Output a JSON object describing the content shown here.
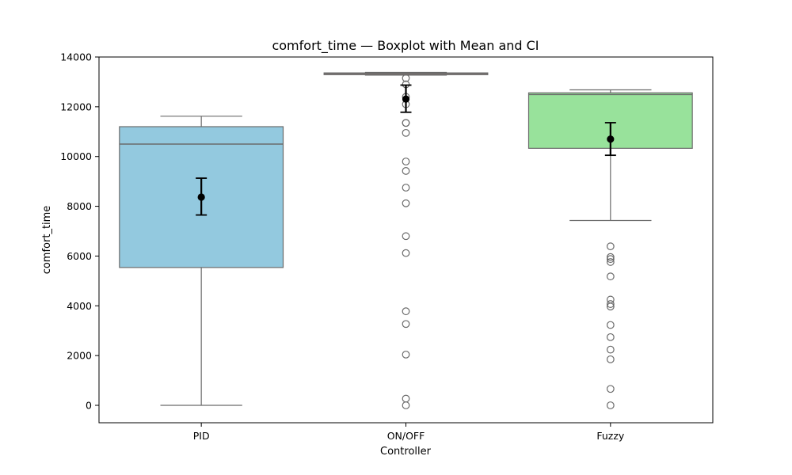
{
  "chart_data": {
    "type": "box",
    "title": "comfort_time — Boxplot with Mean and CI",
    "xlabel": "Controller",
    "ylabel": "comfort_time",
    "ylim": [
      -700,
      14000
    ],
    "yticks": [
      0,
      2000,
      4000,
      6000,
      8000,
      10000,
      12000,
      14000
    ],
    "grid": false,
    "categories": [
      "PID",
      "ON/OFF",
      "Fuzzy"
    ],
    "boxes": [
      {
        "category": "PID",
        "color": "#93c9df",
        "q1": 5540,
        "median": 10500,
        "q3": 11200,
        "whisker_low": 0,
        "whisker_high": 11620,
        "outliers": [],
        "mean": 8370,
        "ci_low": 7650,
        "ci_high": 9130
      },
      {
        "category": "ON/OFF",
        "color": "#f4a582",
        "q1": 13290,
        "median": 13330,
        "q3": 13360,
        "whisker_low": 13270,
        "whisker_high": 13380,
        "outliers": [
          13150,
          12900,
          12400,
          12100,
          11350,
          11350,
          10950,
          9800,
          9420,
          8750,
          8120,
          6800,
          6120,
          3780,
          3270,
          2040,
          270,
          0
        ],
        "mean": 12310,
        "ci_low": 11780,
        "ci_high": 12870
      },
      {
        "category": "Fuzzy",
        "color": "#98e29b",
        "q1": 10330,
        "median": 12490,
        "q3": 12560,
        "whisker_low": 7430,
        "whisker_high": 12680,
        "outliers": [
          6390,
          5960,
          5880,
          5760,
          5180,
          4250,
          4070,
          3970,
          3230,
          2740,
          2240,
          1850,
          660,
          0
        ],
        "mean": 10700,
        "ci_low": 10050,
        "ci_high": 11360
      }
    ]
  }
}
